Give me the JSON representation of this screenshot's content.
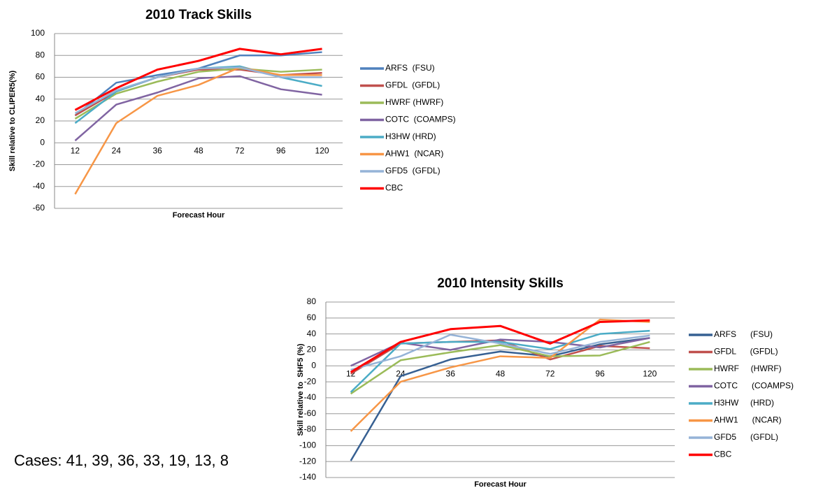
{
  "note": "Cases: 41, 39, 36, 33, 19, 13, 8",
  "chart_data": [
    {
      "type": "line",
      "title": "2010 Track Skills",
      "x_label": "Forecast Hour",
      "y_label": "Skill relative to CLIPER5(%)",
      "categories": [
        "12",
        "24",
        "36",
        "48",
        "72",
        "96",
        "120"
      ],
      "ylim": [
        -60,
        100
      ],
      "yticks": [
        -60,
        -40,
        -20,
        0,
        20,
        40,
        60,
        80,
        100
      ],
      "grid": true,
      "legend": "right",
      "series": [
        {
          "name": "ARFS  (FSU)",
          "color": "#4f81bd",
          "values": [
            25,
            55,
            62,
            68,
            80,
            80,
            83
          ]
        },
        {
          "name": "GFDL  (GFDL)",
          "color": "#c0504d",
          "values": [
            25,
            47,
            60,
            67,
            67,
            62,
            64
          ]
        },
        {
          "name": "HWRF (HWRF)",
          "color": "#9bbb59",
          "values": [
            22,
            45,
            56,
            65,
            68,
            65,
            67
          ]
        },
        {
          "name": "COTC  (COAMPS)",
          "color": "#8064a2",
          "values": [
            2,
            35,
            46,
            59,
            61,
            49,
            44
          ]
        },
        {
          "name": "H3HW (HRD)",
          "color": "#4bacc6",
          "values": [
            18,
            47,
            60,
            68,
            70,
            60,
            52
          ]
        },
        {
          "name": "AHW1  (NCAR)",
          "color": "#f79646",
          "values": [
            -47,
            18,
            43,
            53,
            69,
            62,
            62
          ]
        },
        {
          "name": "GFD5  (GFDL)",
          "color": "#95b3d7",
          "values": [
            27,
            48,
            60,
            68,
            69,
            60,
            60
          ]
        },
        {
          "name": "CBC",
          "color": "#ff0000",
          "values": [
            30,
            50,
            67,
            75,
            86,
            81,
            86
          ]
        }
      ]
    },
    {
      "type": "line",
      "title": "2010 Intensity Skills",
      "x_label": "Forecast Hour",
      "y_label": "Skill relative to  SHF5 (%)",
      "categories": [
        "12",
        "24",
        "36",
        "48",
        "72",
        "96",
        "120"
      ],
      "ylim": [
        -140,
        80
      ],
      "yticks": [
        -140,
        -120,
        -100,
        -80,
        -60,
        -40,
        -20,
        0,
        20,
        40,
        60,
        80
      ],
      "grid": true,
      "legend": "right",
      "series": [
        {
          "name": "ARFS      (FSU)",
          "color": "#376092",
          "values": [
            -119,
            -13,
            8,
            18,
            12,
            27,
            35
          ]
        },
        {
          "name": "GFDL      (GFDL)",
          "color": "#c0504d",
          "values": [
            -10,
            28,
            30,
            32,
            8,
            25,
            22
          ]
        },
        {
          "name": "HWRF     (HWRF)",
          "color": "#9bbb59",
          "values": [
            -35,
            7,
            17,
            26,
            12,
            13,
            30
          ]
        },
        {
          "name": "COTC      (COAMPS)",
          "color": "#8064a2",
          "values": [
            0,
            29,
            20,
            33,
            30,
            23,
            35
          ]
        },
        {
          "name": "H3HW     (HRD)",
          "color": "#4bacc6",
          "values": [
            -33,
            28,
            30,
            30,
            21,
            40,
            44
          ]
        },
        {
          "name": "AHW1      (NCAR)",
          "color": "#f79646",
          "values": [
            -82,
            -20,
            -2,
            12,
            10,
            58,
            55
          ]
        },
        {
          "name": "GFD5      (GFDL)",
          "color": "#95b3d7",
          "values": [
            -5,
            12,
            39,
            28,
            15,
            30,
            38
          ]
        },
        {
          "name": "CBC",
          "color": "#ff0000",
          "values": [
            -8,
            30,
            46,
            50,
            28,
            55,
            57
          ]
        }
      ]
    }
  ]
}
